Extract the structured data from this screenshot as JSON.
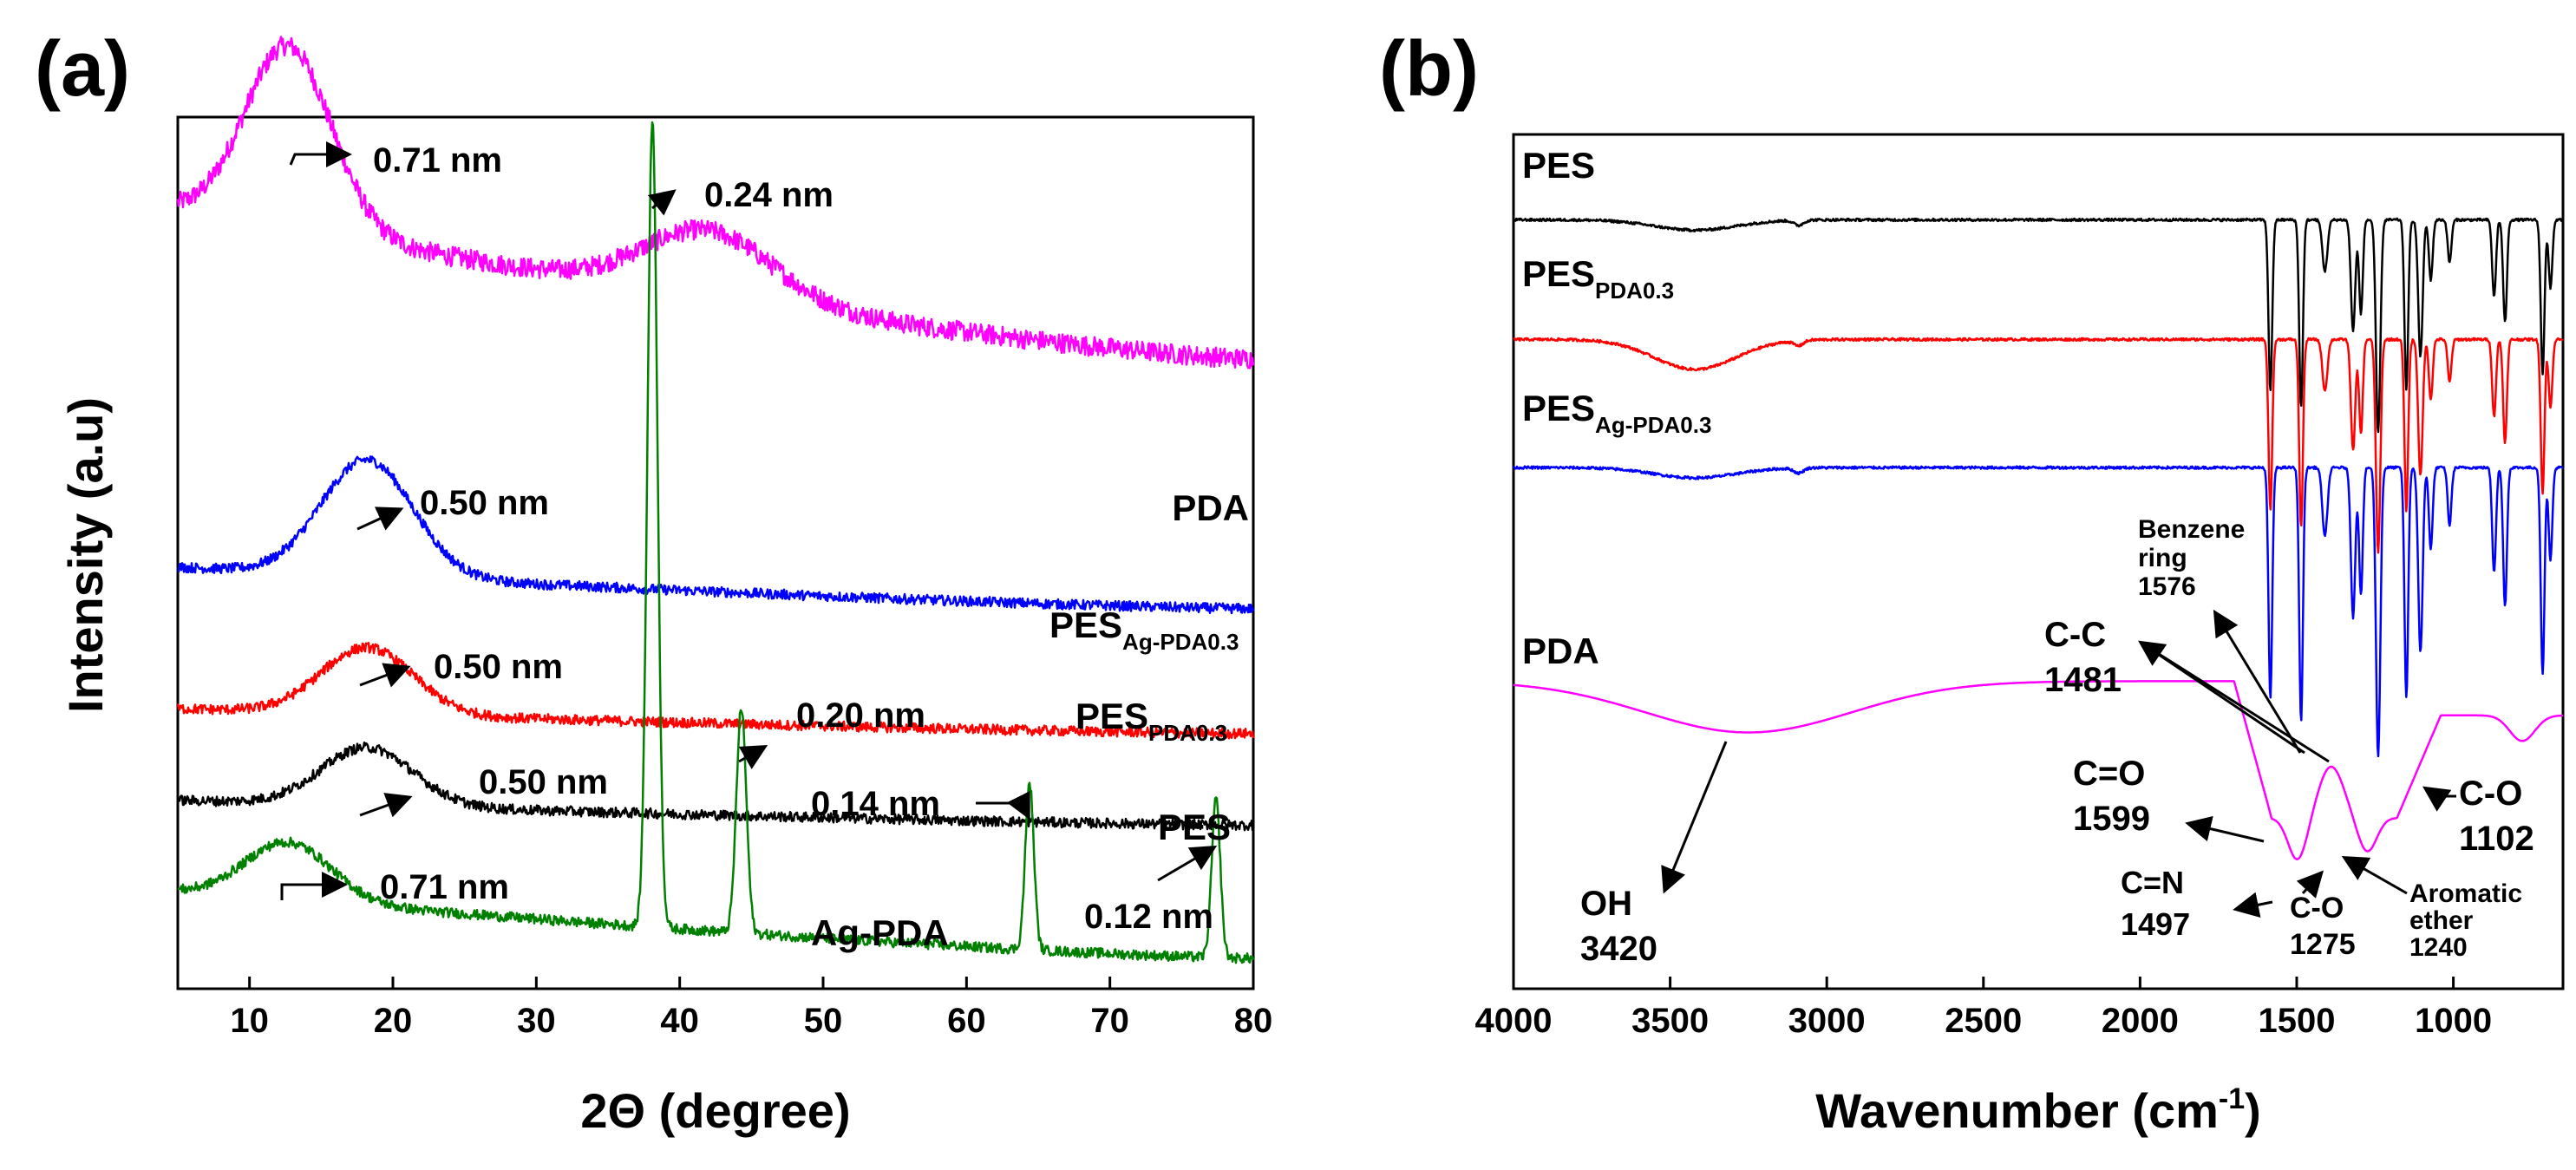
{
  "chart_data": [
    {
      "panel": "(a)",
      "type": "line",
      "xlabel": "2Θ (degree)",
      "ylabel": "Intensity (a.u)",
      "xlim": [
        5,
        80
      ],
      "xticks": [
        "10",
        "20",
        "30",
        "40",
        "50",
        "60",
        "70",
        "80"
      ],
      "series": [
        {
          "name": "PDA",
          "color": "#ff00ff",
          "offset": 0.72,
          "peaks": [
            {
              "x": 12.7,
              "h": 0.22,
              "w": 3.0
            },
            {
              "x": 42,
              "h": 0.08,
              "w": 4.5
            }
          ],
          "baseline": {
            "start": 0.18,
            "end": 0.0
          }
        },
        {
          "name": "PES_Ag-PDA0.3",
          "label_main": "PES",
          "label_sub": "Ag-PDA0.3",
          "color": "#0000ff",
          "offset": 0.42,
          "peaks": [
            {
              "x": 18.2,
              "h": 0.14,
              "w": 3.2
            }
          ],
          "baseline": {
            "start": 0.05,
            "end": 0.0
          }
        },
        {
          "name": "PES_PDA0.3",
          "label_main": "PES",
          "label_sub": "PDA0.3",
          "color": "#ff0000",
          "offset": 0.27,
          "peaks": [
            {
              "x": 18.2,
              "h": 0.08,
              "w": 3.2
            }
          ],
          "baseline": {
            "start": 0.03,
            "end": 0.0
          }
        },
        {
          "name": "PES",
          "label_main": "PES",
          "color": "#000000",
          "offset": 0.16,
          "peaks": [
            {
              "x": 18.2,
              "h": 0.07,
              "w": 3.2
            }
          ],
          "baseline": {
            "start": 0.03,
            "end": 0.0
          }
        },
        {
          "name": "Ag-PDA",
          "label_main": "Ag-PDA",
          "color": "#008000",
          "offset": 0.0,
          "peaks": [
            {
              "x": 12.7,
              "h": 0.07,
              "w": 3.0
            },
            {
              "x": 38.1,
              "h": 0.97,
              "w": 0.35
            },
            {
              "x": 44.3,
              "h": 0.27,
              "w": 0.35
            },
            {
              "x": 64.4,
              "h": 0.2,
              "w": 0.3
            },
            {
              "x": 77.4,
              "h": 0.19,
              "w": 0.3
            }
          ],
          "baseline": {
            "start": 0.08,
            "end": 0.0
          }
        }
      ],
      "annotations": [
        "0.71 nm",
        "0.24 nm",
        "0.50 nm",
        "0.50 nm",
        "0.20 nm",
        "0.50 nm",
        "0.14 nm",
        "0.71 nm",
        "0.12 nm"
      ]
    },
    {
      "panel": "(b)",
      "type": "line",
      "xlabel": "Wavenumber (cm",
      "xlabel_sup": "-1",
      "xlabel_end": ")",
      "xlim": [
        4000,
        650
      ],
      "xticks": [
        "4000",
        "3500",
        "3000",
        "2500",
        "2000",
        "1500",
        "1000"
      ],
      "series": [
        {
          "name": "PES",
          "label_main": "PES",
          "color": "#000000",
          "offset": 0.9
        },
        {
          "name": "PES_PDA0.3",
          "label_main": "PES",
          "label_sub": "PDA0.3",
          "color": "#ff0000",
          "offset": 0.76
        },
        {
          "name": "PES_Ag-PDA0.3",
          "label_main": "PES",
          "label_sub": "Ag-PDA0.3",
          "color": "#0000ff",
          "offset": 0.61
        },
        {
          "name": "PDA",
          "label_main": "PDA",
          "color": "#ff00ff",
          "offset": 0.36
        }
      ],
      "annotations": {
        "benzene_line1": "Benzene",
        "benzene_line2": "ring",
        "benzene_line3": "1576",
        "cc_line1": "C-C",
        "cc_line2": "1481",
        "co1_line1": "C-O",
        "co1_line2": "1102",
        "oh_line1": "OH",
        "oh_line2": "3420",
        "c_eq_o_line1": "C=O",
        "c_eq_o_line2": "1599",
        "cn_line1": "C=N",
        "cn_line2": "1497",
        "co2_line1": "C-O",
        "co2_line2": "1275",
        "arom_line1": "Aromatic",
        "arom_line2": "ether",
        "arom_line3": "1240"
      }
    }
  ]
}
